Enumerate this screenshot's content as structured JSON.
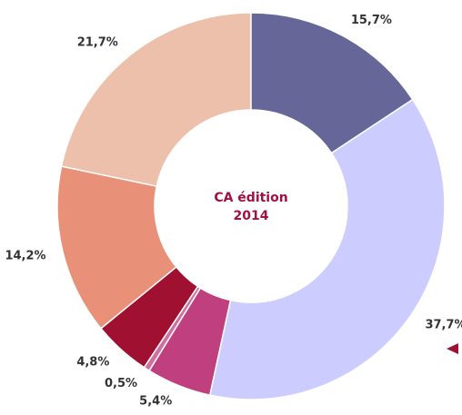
{
  "chart_data": {
    "type": "donut",
    "title_lines": [
      "CA édition",
      "2014"
    ],
    "categories": [
      null,
      null,
      null,
      null,
      null,
      null,
      null
    ],
    "values": [
      15.7,
      37.7,
      5.4,
      0.5,
      4.8,
      14.2,
      21.7
    ],
    "value_labels": [
      "15,7%",
      "37,7%",
      "5,4%",
      "0,5%",
      "4,8%",
      "14,2%",
      "21,7%"
    ],
    "colors": [
      "#666699",
      "#ccccff",
      "#c0407f",
      "#d070a0",
      "#a01030",
      "#e89078",
      "#ecc0aa"
    ]
  }
}
